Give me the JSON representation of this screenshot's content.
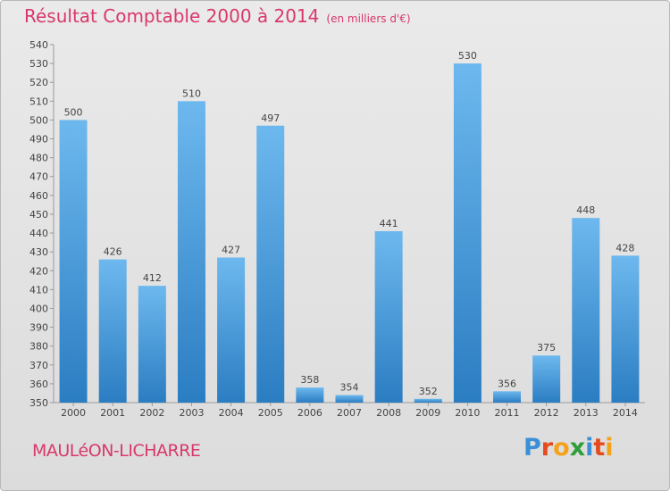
{
  "header": {
    "title": "Résultat Comptable 2000 à 2014",
    "unit": "(en milliers d'€)"
  },
  "footer": {
    "commune": "MAULéON-LICHARRE",
    "logo_letters": [
      "P",
      "r",
      "o",
      "x",
      "i",
      "t",
      "i"
    ],
    "logo_colors": [
      "#3b8fd6",
      "#e64b1e",
      "#f4a21a",
      "#2f9e3a",
      "#3b8fd6",
      "#e64b1e",
      "#f4a21a"
    ]
  },
  "colors": {
    "bar_light": "#6db8ee",
    "bar_dark": "#2b7dc2",
    "title": "#d9386b"
  },
  "chart_data": {
    "type": "bar",
    "title": "Résultat Comptable 2000 à 2014",
    "ylabel": "(en milliers d'€)",
    "categories": [
      "2000",
      "2001",
      "2002",
      "2003",
      "2004",
      "2005",
      "2006",
      "2007",
      "2008",
      "2009",
      "2010",
      "2011",
      "2012",
      "2013",
      "2014"
    ],
    "values": [
      500,
      426,
      412,
      510,
      427,
      497,
      358,
      354,
      441,
      352,
      530,
      356,
      375,
      448,
      428
    ],
    "ylim": [
      350,
      540
    ],
    "ytick_step": 10,
    "grid": false
  }
}
